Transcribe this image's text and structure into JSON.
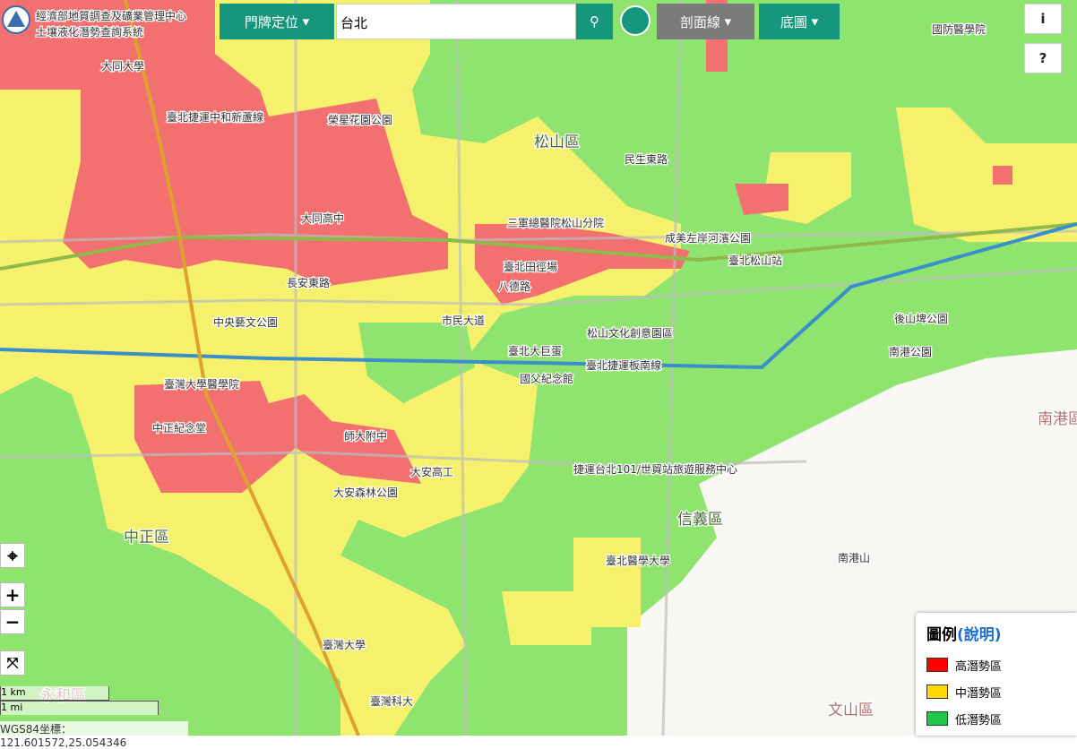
{
  "header": {
    "agency": "經濟部地質調查及礦業管理中心",
    "system": "土壤液化潛勢查詢系統"
  },
  "toolbar": {
    "locate": "門牌定位",
    "search_value": "台北",
    "profile": "剖面線",
    "basemap": "底圖"
  },
  "buttons": {
    "info": "i",
    "help": "?",
    "zoom_in": "+",
    "zoom_out": "−"
  },
  "legend": {
    "title": "圖例",
    "link": "(說明)",
    "items": [
      {
        "label": "高潛勢區",
        "color": "#ff0000"
      },
      {
        "label": "中潛勢區",
        "color": "#ffd800"
      },
      {
        "label": "低潛勢區",
        "color": "#1fc84a"
      }
    ]
  },
  "scale": {
    "km": "1 km",
    "mi": "1 mi"
  },
  "coordinates": "WGS84坐標：121.601572,25.054346",
  "map_labels": [
    "大同大學",
    "臺北捷運中和新蘆線",
    "榮星花園公園",
    "松山區",
    "民生東路",
    "三軍總醫院松山分院",
    "臺北田徑場",
    "八德路",
    "成美左岸河濱公園",
    "臺北松山站",
    "中央藝文公園",
    "市民大道",
    "松山文化創意園區",
    "臺北大巨蛋",
    "臺北捷運板南線",
    "國父紀念館",
    "臺灣大學醫學院",
    "中正紀念堂",
    "師大附中",
    "大安高工",
    "捷運台北101/世貿站旅遊服務中心",
    "信義區",
    "中正區",
    "臺北醫學大學",
    "南港區",
    "文山區",
    "南港山",
    "臺灣大學",
    "國防醫學院",
    "臺灣科大",
    "大安森林公園",
    "永和區",
    "大同高中",
    "長安東路",
    "後山埤公園",
    "南港公園"
  ]
}
